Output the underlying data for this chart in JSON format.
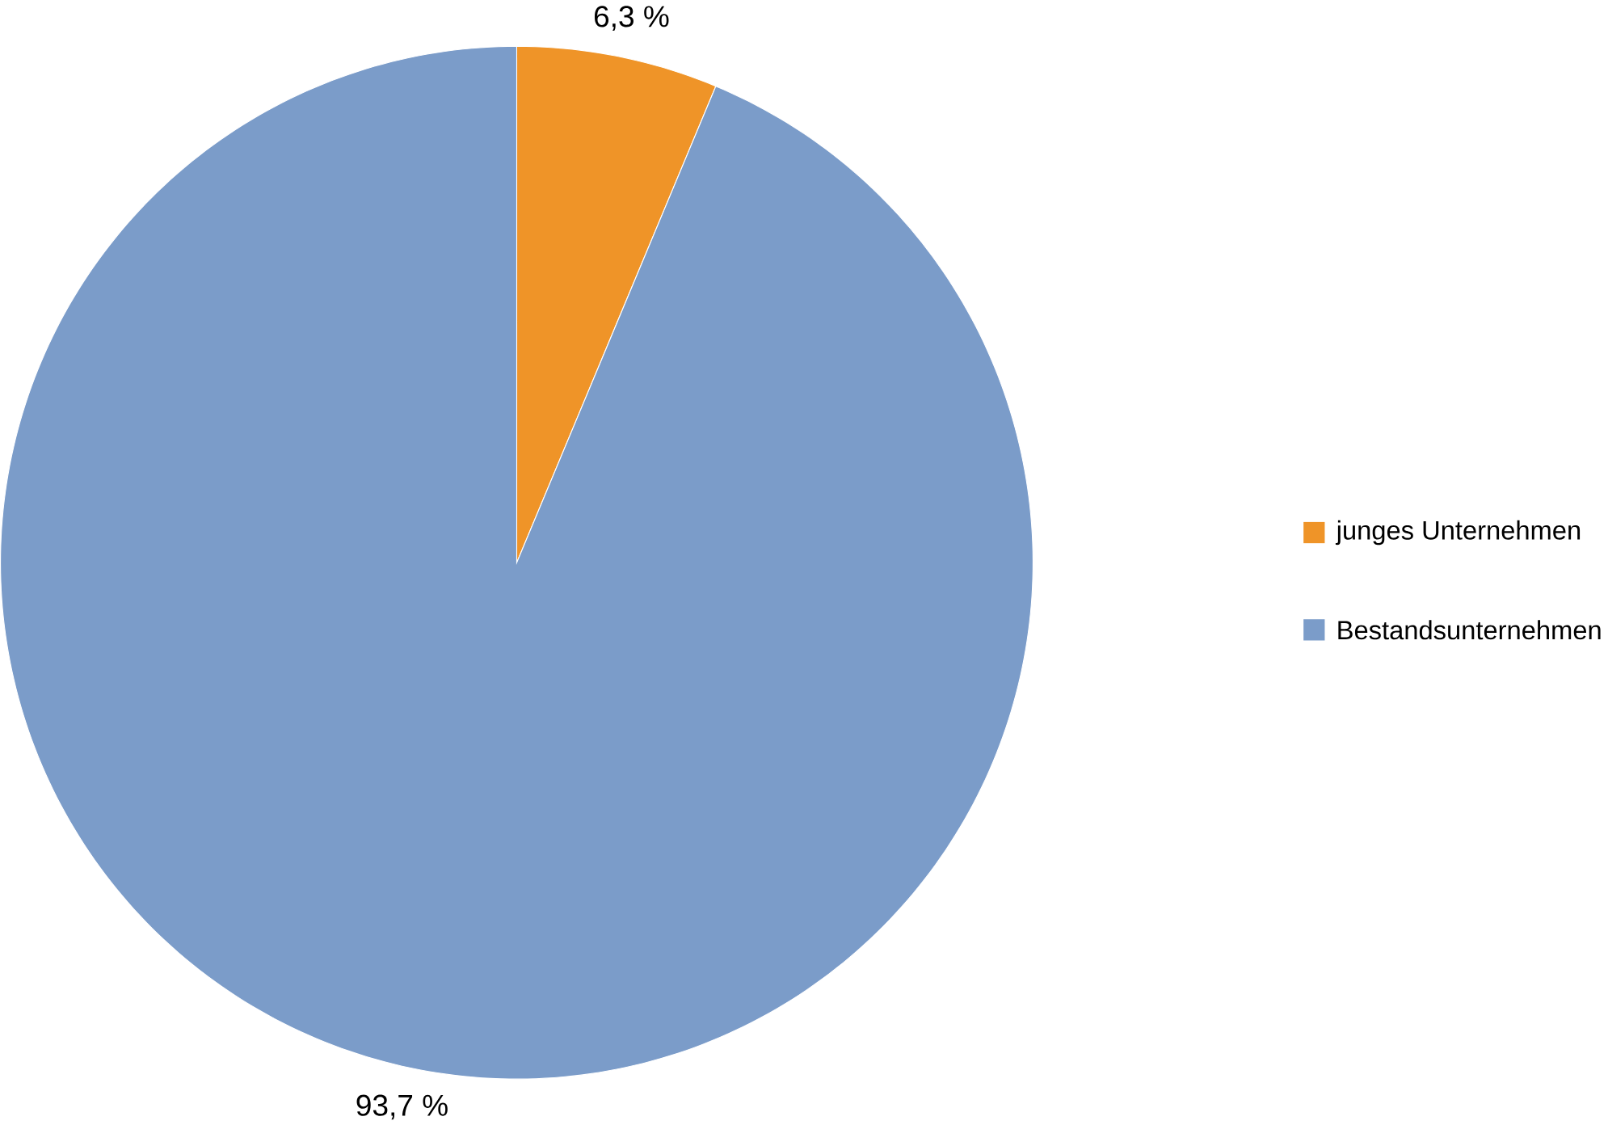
{
  "chart_data": {
    "type": "pie",
    "categories": [
      "junges Unternehmen",
      "Bestandsunternehmen"
    ],
    "values": [
      6.3,
      93.7
    ],
    "colors": [
      "#ef9428",
      "#7b9cc9"
    ],
    "value_labels": [
      "6,3 %",
      "93,7 %"
    ],
    "legend": "right"
  }
}
